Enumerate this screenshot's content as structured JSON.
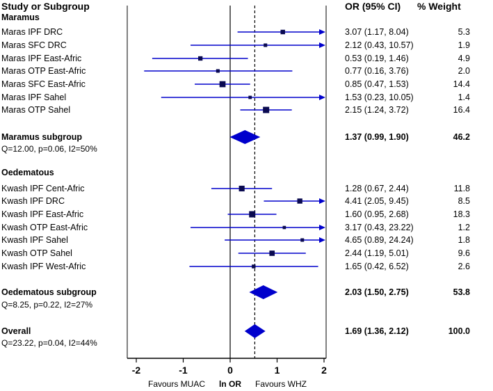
{
  "header": {
    "study": "Study or Subgroup",
    "or": "OR (95% CI)",
    "weight": "% Weight"
  },
  "chart_data": {
    "type": "forest",
    "x_scale": "ln OR",
    "xlim": [
      -2,
      2
    ],
    "ticks": [
      "-2",
      "-1",
      "0",
      "1",
      "2"
    ],
    "xlabel": "ln OR",
    "left_label": "Favours MUAC",
    "right_label": "Favours WHZ",
    "overall_line": 0.5247,
    "colors": {
      "marks": "#0000cc",
      "axis": "#000000"
    },
    "groups": [
      {
        "name": "Maramus",
        "studies": [
          {
            "label": "Maras IPF DRC",
            "or": 3.07,
            "lo": 1.17,
            "hi": 8.04,
            "ci_text": "3.07 (1.17, 8.04)",
            "weight": "5.3"
          },
          {
            "label": "Maras SFC DRC",
            "or": 2.12,
            "lo": 0.43,
            "hi": 10.57,
            "ci_text": "2.12 (0.43, 10.57)",
            "weight": "1.9"
          },
          {
            "label": "Maras IPF East-Afric",
            "or": 0.53,
            "lo": 0.19,
            "hi": 1.46,
            "ci_text": "0.53 (0.19, 1.46)",
            "weight": "4.9"
          },
          {
            "label": "Maras OTP East-Afric",
            "or": 0.77,
            "lo": 0.16,
            "hi": 3.76,
            "ci_text": "0.77 (0.16, 3.76)",
            "weight": "2.0"
          },
          {
            "label": "Maras SFC East-Afric",
            "or": 0.85,
            "lo": 0.47,
            "hi": 1.53,
            "ci_text": "0.85 (0.47, 1.53)",
            "weight": "14.4"
          },
          {
            "label": "Maras IPF Sahel",
            "or": 1.53,
            "lo": 0.23,
            "hi": 10.05,
            "ci_text": "1.53 (0.23, 10.05)",
            "weight": "1.4"
          },
          {
            "label": "Maras OTP Sahel",
            "or": 2.15,
            "lo": 1.24,
            "hi": 3.72,
            "ci_text": "2.15 (1.24, 3.72)",
            "weight": "16.4"
          }
        ],
        "subtotal": {
          "label": "Maramus subgroup",
          "or": 1.37,
          "lo": 0.99,
          "hi": 1.9,
          "ci_text": "1.37 (0.99, 1.90)",
          "weight": "46.2",
          "het": "Q=12.00, p=0.06, I2=50%"
        }
      },
      {
        "name": "Oedematous",
        "studies": [
          {
            "label": "Kwash IPF Cent-Afric",
            "or": 1.28,
            "lo": 0.67,
            "hi": 2.44,
            "ci_text": "1.28 (0.67, 2.44)",
            "weight": "11.8"
          },
          {
            "label": "Kwash IPF DRC",
            "or": 4.41,
            "lo": 2.05,
            "hi": 9.45,
            "ci_text": "4.41 (2.05, 9.45)",
            "weight": "8.5"
          },
          {
            "label": "Kwash IPF East-Afric",
            "or": 1.6,
            "lo": 0.95,
            "hi": 2.68,
            "ci_text": "1.60 (0.95, 2.68)",
            "weight": "18.3"
          },
          {
            "label": "Kwash OTP East-Afric",
            "or": 3.17,
            "lo": 0.43,
            "hi": 23.22,
            "ci_text": "3.17 (0.43, 23.22)",
            "weight": "1.2"
          },
          {
            "label": "Kwash IPF Sahel",
            "or": 4.65,
            "lo": 0.89,
            "hi": 24.24,
            "ci_text": "4.65 (0.89, 24.24)",
            "weight": "1.8"
          },
          {
            "label": "Kwash OTP Sahel",
            "or": 2.44,
            "lo": 1.19,
            "hi": 5.01,
            "ci_text": "2.44 (1.19, 5.01)",
            "weight": "9.6"
          },
          {
            "label": "Kwash IPF West-Afric",
            "or": 1.65,
            "lo": 0.42,
            "hi": 6.52,
            "ci_text": "1.65 (0.42, 6.52)",
            "weight": "2.6"
          }
        ],
        "subtotal": {
          "label": "Oedematous subgroup",
          "or": 2.03,
          "lo": 1.5,
          "hi": 2.75,
          "ci_text": "2.03 (1.50, 2.75)",
          "weight": "53.8",
          "het": "Q=8.25, p=0.22, I2=27%"
        }
      }
    ],
    "overall": {
      "label": "Overall",
      "or": 1.69,
      "lo": 1.36,
      "hi": 2.12,
      "ci_text": "1.69 (1.36, 2.12)",
      "weight": "100.0",
      "het": "Q=23.22, p=0.04, I2=44%"
    }
  }
}
